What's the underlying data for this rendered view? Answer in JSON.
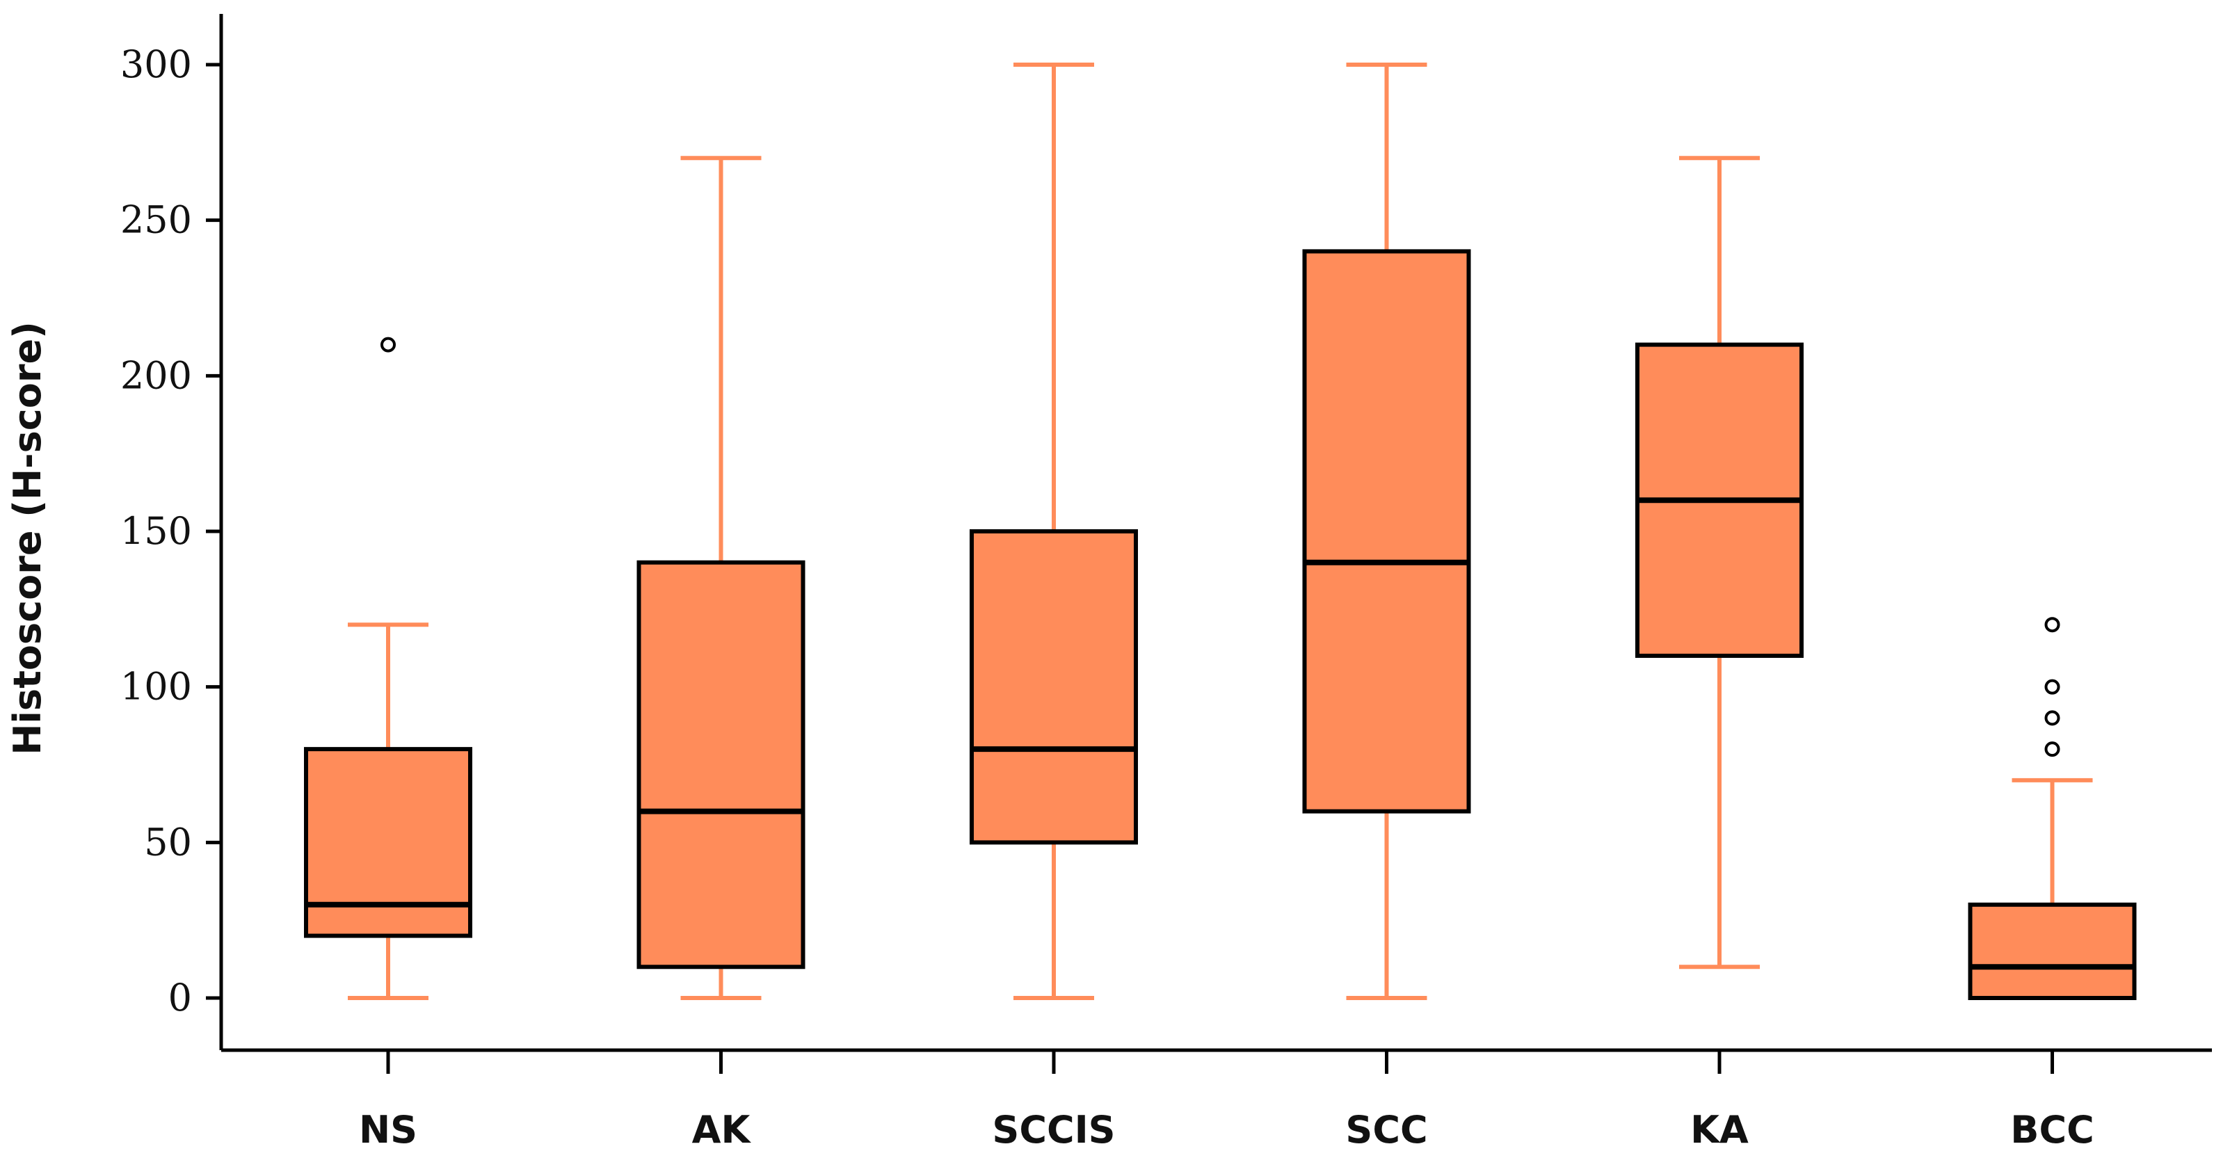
{
  "chart_data": {
    "type": "boxplot",
    "title": "",
    "xlabel": "",
    "ylabel": "Histoscore (H-score)",
    "ylim": [
      -15,
      320
    ],
    "yticks": [
      0,
      50,
      100,
      150,
      200,
      250,
      300
    ],
    "grid": false,
    "legend": "none",
    "categories": [
      "NS",
      "AK",
      "SCCIS",
      "SCC",
      "KA",
      "BCC"
    ],
    "boxes": [
      {
        "label": "NS",
        "whisker_low": 0,
        "q1": 20,
        "median": 30,
        "q3": 80,
        "whisker_high": 120,
        "outliers": [
          210
        ]
      },
      {
        "label": "AK",
        "whisker_low": 0,
        "q1": 10,
        "median": 60,
        "q3": 140,
        "whisker_high": 270,
        "outliers": []
      },
      {
        "label": "SCCIS",
        "whisker_low": 0,
        "q1": 50,
        "median": 80,
        "q3": 150,
        "whisker_high": 300,
        "outliers": []
      },
      {
        "label": "SCC",
        "whisker_low": 0,
        "q1": 60,
        "median": 140,
        "q3": 240,
        "whisker_high": 300,
        "outliers": []
      },
      {
        "label": "KA",
        "whisker_low": 10,
        "q1": 110,
        "median": 160,
        "q3": 210,
        "whisker_high": 270,
        "outliers": []
      },
      {
        "label": "BCC",
        "whisker_low": 0,
        "q1": 0,
        "median": 10,
        "q3": 30,
        "whisker_high": 70,
        "outliers": [
          80,
          90,
          100,
          120
        ]
      }
    ],
    "colors": {
      "box_fill": "#FF8C5A",
      "whisker": "#FF8C5A",
      "box_edge": "#000000",
      "median": "#000000",
      "outlier": "#000000",
      "axis": "#000000"
    }
  }
}
